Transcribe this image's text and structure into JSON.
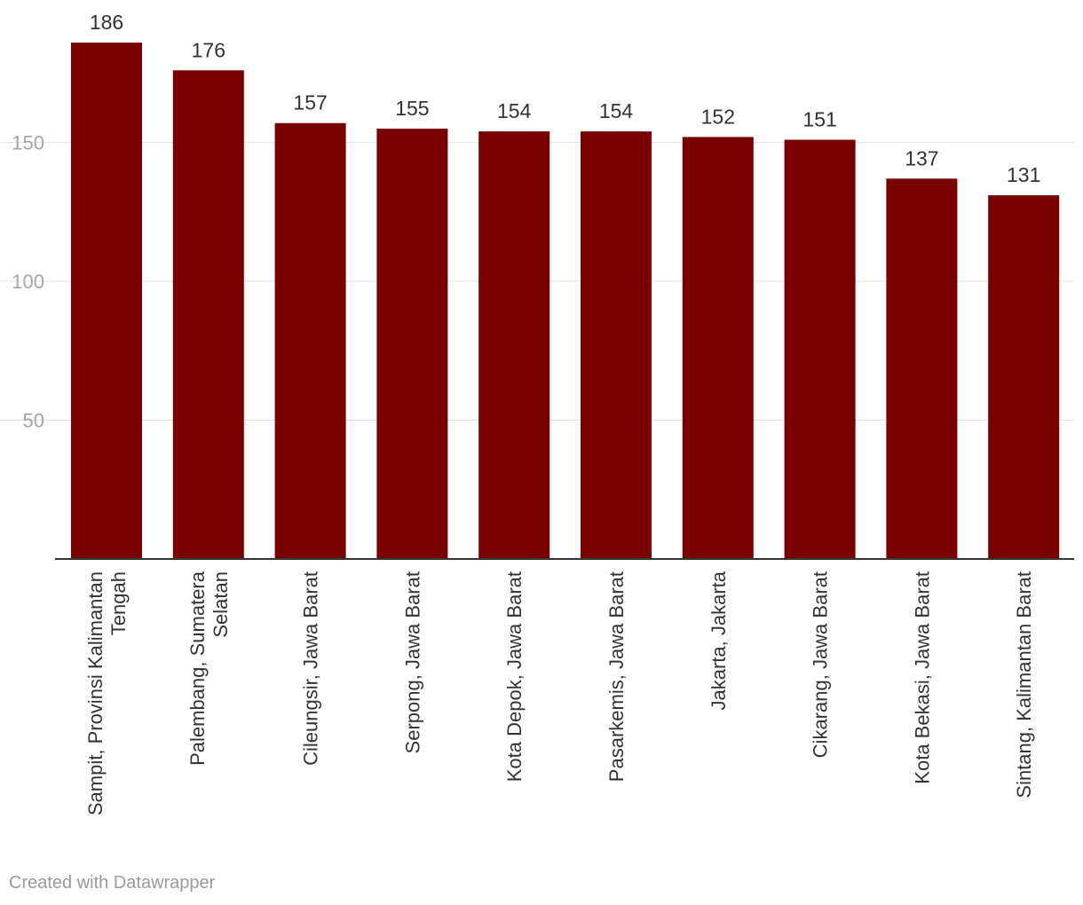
{
  "chart_data": {
    "type": "bar",
    "title": "",
    "xlabel": "",
    "ylabel": "",
    "categories": [
      [
        "Sampit, Provinsi Kalimantan",
        "Tengah"
      ],
      [
        "Palembang, Sumatera",
        "Selatan"
      ],
      [
        "Cileungsir, Jawa Barat"
      ],
      [
        "Serpong, Jawa Barat"
      ],
      [
        "Kota Depok, Jawa Barat"
      ],
      [
        "Pasarkemis, Jawa Barat"
      ],
      [
        "Jakarta, Jakarta"
      ],
      [
        "Cikarang, Jawa Barat"
      ],
      [
        "Kota Bekasi, Jawa Barat"
      ],
      [
        "Sintang, Kalimantan Barat"
      ]
    ],
    "values": [
      186,
      176,
      157,
      155,
      154,
      154,
      152,
      151,
      137,
      131
    ],
    "ylim": [
      0,
      186
    ],
    "yticks": [
      50,
      100,
      150
    ],
    "bar_color": "#7a0000",
    "grid": true,
    "data_labels": true
  },
  "credit": "Created with Datawrapper"
}
